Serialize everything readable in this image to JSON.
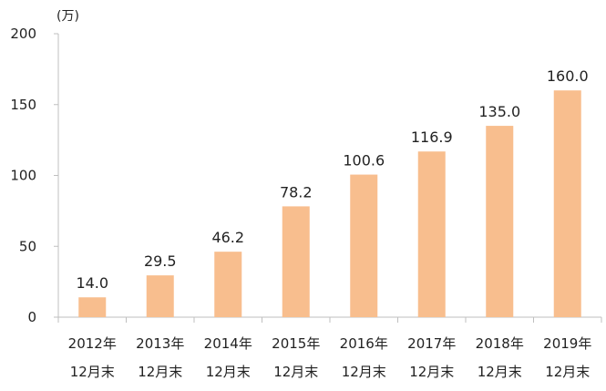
{
  "chart_data": {
    "type": "bar",
    "unit": "(万)",
    "categories": [
      [
        "2012年",
        "12月末"
      ],
      [
        "2013年",
        "12月末"
      ],
      [
        "2014年",
        "12月末"
      ],
      [
        "2015年",
        "12月末"
      ],
      [
        "2016年",
        "12月末"
      ],
      [
        "2017年",
        "12月末"
      ],
      [
        "2018年",
        "12月末"
      ],
      [
        "2019年",
        "12月末"
      ]
    ],
    "values": [
      14.0,
      29.5,
      46.2,
      78.2,
      100.6,
      116.9,
      135.0,
      160.0
    ],
    "value_labels": [
      "14.0",
      "29.5",
      "46.2",
      "78.2",
      "100.6",
      "116.9",
      "135.0",
      "160.0"
    ],
    "ylim": [
      0,
      200
    ],
    "yticks": [
      0,
      50,
      100,
      150,
      200
    ],
    "grid": false,
    "bar_color": "#F8BE8E",
    "axis_color": "#BFBFBF",
    "text_color": "#222222"
  }
}
